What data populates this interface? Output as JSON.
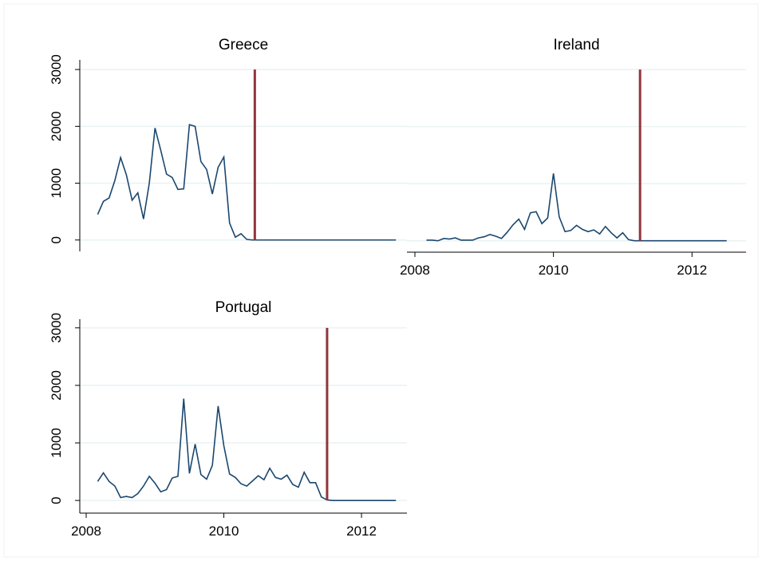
{
  "chart_data": [
    {
      "type": "line",
      "title": "Greece",
      "color": "#1a476f",
      "reference_x": 2010.45,
      "reference_color": "#90353b",
      "x": [
        2008.167,
        2008.25,
        2008.333,
        2008.417,
        2008.5,
        2008.583,
        2008.667,
        2008.75,
        2008.833,
        2008.917,
        2009,
        2009.083,
        2009.167,
        2009.25,
        2009.333,
        2009.417,
        2009.5,
        2009.583,
        2009.667,
        2009.75,
        2009.833,
        2009.917,
        2010,
        2010.083,
        2010.167,
        2010.25,
        2010.333,
        2010.417,
        2010.5,
        2010.583,
        2010.667,
        2010.75,
        2010.833,
        2010.917,
        2011,
        2011.083,
        2011.167,
        2011.25,
        2011.333,
        2011.417,
        2011.5,
        2011.583,
        2011.667,
        2011.75,
        2011.833,
        2011.917,
        2012,
        2012.083,
        2012.167,
        2012.25,
        2012.333,
        2012.417,
        2012.5
      ],
      "values": [
        450,
        680,
        740,
        1050,
        1450,
        1150,
        700,
        830,
        370,
        1000,
        1970,
        1580,
        1160,
        1100,
        890,
        900,
        2030,
        2000,
        1380,
        1240,
        810,
        1280,
        1460,
        300,
        50,
        110,
        10,
        0,
        0,
        0,
        0,
        0,
        0,
        0,
        0,
        0,
        0,
        0,
        0,
        0,
        0,
        0,
        0,
        0,
        0,
        0,
        0,
        0,
        0,
        0,
        0,
        0,
        0
      ],
      "xlim": [
        2007.907,
        2012.66
      ],
      "ylim": [
        -200,
        3170
      ],
      "yticks": [
        0,
        1000,
        2000,
        3000
      ],
      "grid": true
    },
    {
      "type": "line",
      "title": "Ireland",
      "color": "#1a476f",
      "reference_x": 2011.25,
      "reference_color": "#90353b",
      "x": [
        2008.167,
        2008.25,
        2008.333,
        2008.417,
        2008.5,
        2008.583,
        2008.667,
        2008.75,
        2008.833,
        2008.917,
        2009,
        2009.083,
        2009.167,
        2009.25,
        2009.333,
        2009.417,
        2009.5,
        2009.583,
        2009.667,
        2009.75,
        2009.833,
        2009.917,
        2010,
        2010.083,
        2010.167,
        2010.25,
        2010.333,
        2010.417,
        2010.5,
        2010.583,
        2010.667,
        2010.75,
        2010.833,
        2010.917,
        2011,
        2011.083,
        2011.167,
        2011.25,
        2011.333,
        2011.417,
        2011.5,
        2011.583,
        2011.667,
        2011.75,
        2011.833,
        2011.917,
        2012,
        2012.083,
        2012.167,
        2012.25,
        2012.333,
        2012.417,
        2012.5
      ],
      "values": [
        10,
        10,
        0,
        40,
        30,
        50,
        10,
        10,
        10,
        50,
        70,
        110,
        80,
        40,
        150,
        280,
        380,
        200,
        490,
        510,
        300,
        400,
        1180,
        420,
        160,
        180,
        270,
        200,
        160,
        190,
        120,
        250,
        140,
        50,
        140,
        20,
        0,
        0,
        0,
        0,
        0,
        0,
        0,
        0,
        0,
        0,
        0,
        0,
        0,
        0,
        0,
        0,
        0
      ],
      "xlim": [
        2007.885,
        2012.78
      ],
      "xticks": [
        2008,
        2010,
        2012
      ],
      "ylim": [
        -200,
        3170
      ],
      "yticks": [
        0,
        1000,
        2000,
        3000
      ],
      "show_ytick_labels": false,
      "grid": true
    },
    {
      "type": "line",
      "title": "Portugal",
      "color": "#1a476f",
      "reference_x": 2011.5,
      "reference_color": "#90353b",
      "x": [
        2008.167,
        2008.25,
        2008.333,
        2008.417,
        2008.5,
        2008.583,
        2008.667,
        2008.75,
        2008.833,
        2008.917,
        2009,
        2009.083,
        2009.167,
        2009.25,
        2009.333,
        2009.417,
        2009.5,
        2009.583,
        2009.667,
        2009.75,
        2009.833,
        2009.917,
        2010,
        2010.083,
        2010.167,
        2010.25,
        2010.333,
        2010.417,
        2010.5,
        2010.583,
        2010.667,
        2010.75,
        2010.833,
        2010.917,
        2011,
        2011.083,
        2011.167,
        2011.25,
        2011.333,
        2011.417,
        2011.5,
        2011.583,
        2011.667,
        2011.75,
        2011.833,
        2011.917,
        2012,
        2012.083,
        2012.167,
        2012.25,
        2012.333,
        2012.417,
        2012.5
      ],
      "values": [
        330,
        480,
        330,
        250,
        50,
        70,
        50,
        120,
        250,
        420,
        300,
        150,
        190,
        390,
        420,
        1770,
        470,
        980,
        450,
        370,
        610,
        1640,
        950,
        460,
        400,
        290,
        250,
        340,
        430,
        360,
        560,
        400,
        370,
        440,
        280,
        230,
        490,
        310,
        310,
        60,
        10,
        0,
        0,
        0,
        0,
        0,
        0,
        0,
        0,
        0,
        0,
        0,
        0
      ],
      "xlim": [
        2007.907,
        2012.66
      ],
      "xticks": [
        2008,
        2010,
        2012
      ],
      "ylim": [
        -220,
        3150
      ],
      "yticks": [
        0,
        1000,
        2000,
        3000
      ],
      "grid": true
    }
  ]
}
